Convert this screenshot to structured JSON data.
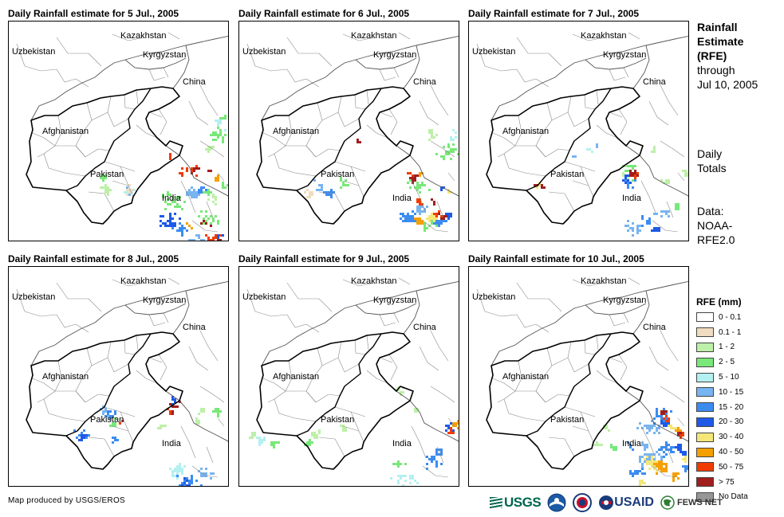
{
  "panels": [
    {
      "title": "Daily Rainfall estimate for 5 Jul., 2005"
    },
    {
      "title": "Daily Rainfall estimate for 6 Jul., 2005"
    },
    {
      "title": "Daily Rainfall estimate for 7 Jul., 2005"
    },
    {
      "title": "Daily Rainfall estimate for 8 Jul., 2005"
    },
    {
      "title": "Daily Rainfall estimate for 9 Jul., 2005"
    },
    {
      "title": "Daily Rainfall estimate for 10 Jul., 2005"
    }
  ],
  "map_labels": {
    "kazakhstan": "Kazakhstan",
    "uzbekistan": "Uzbekistan",
    "kyrgyzstan": "Kyrgyzstan",
    "china": "China",
    "afghanistan": "Afghanistan",
    "pakistan": "Pakistan",
    "india": "India"
  },
  "side": {
    "title_line1": "Rainfall",
    "title_line2": "Estimate",
    "title_line3": "(RFE)",
    "through": "through",
    "date": "Jul 10, 2005",
    "daily1": "Daily",
    "daily2": "Totals",
    "data1": "Data:",
    "data2": "NOAA-",
    "data3": "RFE2.0"
  },
  "legend": {
    "title": "RFE (mm)",
    "items": [
      {
        "label": "0 - 0.1",
        "color": "#ffffff"
      },
      {
        "label": "0.1 - 1",
        "color": "#f0dcc0"
      },
      {
        "label": "1 - 2",
        "color": "#bdf0a8"
      },
      {
        "label": "2 - 5",
        "color": "#78e878"
      },
      {
        "label": "5 - 10",
        "color": "#b4f0f0"
      },
      {
        "label": "10 - 15",
        "color": "#78b4f0"
      },
      {
        "label": "15 - 20",
        "color": "#3c8cf0"
      },
      {
        "label": "20 - 30",
        "color": "#1e5ae6"
      },
      {
        "label": "30 - 40",
        "color": "#f5e678"
      },
      {
        "label": "40 - 50",
        "color": "#f5a000"
      },
      {
        "label": "50 - 75",
        "color": "#f03c00"
      },
      {
        "label": "> 75",
        "color": "#a01e1e"
      },
      {
        "label": "No Data",
        "color": "#969696"
      }
    ]
  },
  "credit": "Map produced by USGS/EROS",
  "logos": {
    "usgs": "USGS",
    "usaid": "USAID",
    "fews": "FEWS NET"
  }
}
